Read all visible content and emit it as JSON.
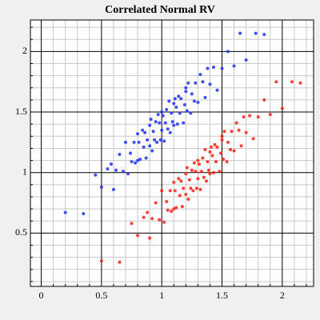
{
  "chart_data": {
    "type": "scatter",
    "title": "Correlated Normal RV",
    "xlim": [
      -0.09,
      2.26
    ],
    "ylim": [
      0.06,
      2.26
    ],
    "xticks": [
      0,
      0.5,
      1,
      1.5,
      2
    ],
    "yticks": [
      0.5,
      1,
      1.5,
      2
    ],
    "xminorticks": [
      0.1,
      0.2,
      0.3,
      0.4,
      0.6,
      0.7,
      0.8,
      0.9,
      1.1,
      1.2,
      1.3,
      1.4,
      1.6,
      1.7,
      1.8,
      1.9,
      2.1,
      2.2
    ],
    "yminorticks": [
      0.1,
      0.2,
      0.3,
      0.4,
      0.6,
      0.7,
      0.8,
      0.9,
      1.1,
      1.2,
      1.3,
      1.4,
      1.6,
      1.7,
      1.8,
      1.9,
      2.1,
      2.2
    ],
    "grid": true,
    "series": [
      {
        "color": "#1f2fff",
        "x": [
          0.2,
          0.35,
          0.45,
          0.5,
          0.55,
          0.6,
          0.62,
          0.65,
          0.68,
          0.7,
          0.72,
          0.74,
          0.75,
          0.77,
          0.78,
          0.8,
          0.81,
          0.82,
          0.84,
          0.85,
          0.86,
          0.87,
          0.88,
          0.9,
          0.9,
          0.91,
          0.92,
          0.93,
          0.94,
          0.95,
          0.96,
          0.97,
          0.98,
          0.99,
          1.0,
          1.0,
          1.01,
          1.02,
          1.03,
          1.04,
          1.05,
          1.06,
          1.07,
          1.08,
          1.09,
          1.1,
          1.1,
          1.11,
          1.12,
          1.13,
          1.14,
          1.15,
          1.16,
          1.18,
          1.19,
          1.2,
          1.21,
          1.22,
          1.24,
          1.25,
          1.27,
          1.28,
          1.3,
          1.32,
          1.34,
          1.36,
          1.38,
          1.4,
          1.43,
          1.46,
          1.5,
          1.55,
          1.6,
          1.65,
          1.7,
          1.78,
          1.85,
          0.58,
          0.8,
          1.2
        ],
        "values": [
          0.67,
          0.66,
          0.98,
          0.88,
          1.03,
          0.86,
          1.02,
          1.15,
          1.01,
          1.25,
          0.99,
          1.16,
          1.09,
          1.25,
          1.08,
          1.32,
          1.25,
          1.11,
          1.35,
          1.21,
          1.33,
          1.12,
          1.27,
          1.39,
          1.22,
          1.44,
          1.18,
          1.34,
          1.27,
          1.42,
          1.25,
          1.48,
          1.41,
          1.27,
          1.5,
          1.35,
          1.47,
          1.26,
          1.41,
          1.52,
          1.36,
          1.59,
          1.33,
          1.49,
          1.42,
          1.57,
          1.39,
          1.61,
          1.54,
          1.4,
          1.63,
          1.49,
          1.61,
          1.41,
          1.56,
          1.67,
          1.51,
          1.74,
          1.49,
          1.65,
          1.59,
          1.74,
          1.58,
          1.81,
          1.75,
          1.62,
          1.86,
          1.73,
          1.87,
          1.68,
          1.86,
          2.0,
          1.88,
          2.15,
          1.93,
          2.15,
          2.14,
          1.07,
          1.1,
          1.7
        ]
      },
      {
        "color": "#ff2010",
        "x": [
          0.5,
          0.65,
          0.75,
          0.8,
          0.85,
          0.9,
          0.92,
          0.95,
          0.98,
          1.0,
          1.02,
          1.04,
          1.05,
          1.07,
          1.08,
          1.1,
          1.11,
          1.12,
          1.14,
          1.15,
          1.16,
          1.17,
          1.18,
          1.2,
          1.2,
          1.21,
          1.22,
          1.23,
          1.24,
          1.25,
          1.26,
          1.27,
          1.28,
          1.29,
          1.3,
          1.3,
          1.31,
          1.32,
          1.33,
          1.34,
          1.35,
          1.36,
          1.37,
          1.38,
          1.39,
          1.4,
          1.4,
          1.41,
          1.42,
          1.43,
          1.44,
          1.45,
          1.46,
          1.48,
          1.49,
          1.5,
          1.51,
          1.52,
          1.54,
          1.55,
          1.57,
          1.58,
          1.6,
          1.62,
          1.64,
          1.66,
          1.68,
          1.7,
          1.73,
          1.76,
          1.8,
          1.85,
          1.9,
          1.95,
          2.0,
          2.08,
          2.15,
          0.88,
          1.1,
          1.5
        ],
        "values": [
          0.27,
          0.26,
          0.58,
          0.48,
          0.63,
          0.46,
          0.62,
          0.75,
          0.61,
          0.85,
          0.59,
          0.76,
          0.69,
          0.85,
          0.68,
          0.92,
          0.85,
          0.71,
          0.95,
          0.81,
          0.93,
          0.72,
          0.87,
          0.99,
          0.82,
          1.04,
          0.78,
          0.94,
          0.87,
          1.02,
          0.85,
          1.08,
          1.01,
          0.87,
          1.1,
          0.95,
          1.07,
          0.86,
          1.01,
          1.12,
          0.96,
          1.19,
          0.93,
          1.09,
          1.02,
          1.17,
          0.99,
          1.21,
          1.14,
          1.0,
          1.23,
          1.09,
          1.21,
          1.01,
          1.16,
          1.27,
          1.11,
          1.34,
          1.09,
          1.25,
          1.19,
          1.34,
          1.18,
          1.41,
          1.35,
          1.22,
          1.46,
          1.33,
          1.47,
          1.28,
          1.46,
          1.6,
          1.48,
          1.75,
          1.53,
          1.75,
          1.74,
          0.67,
          0.7,
          1.3
        ]
      }
    ]
  }
}
